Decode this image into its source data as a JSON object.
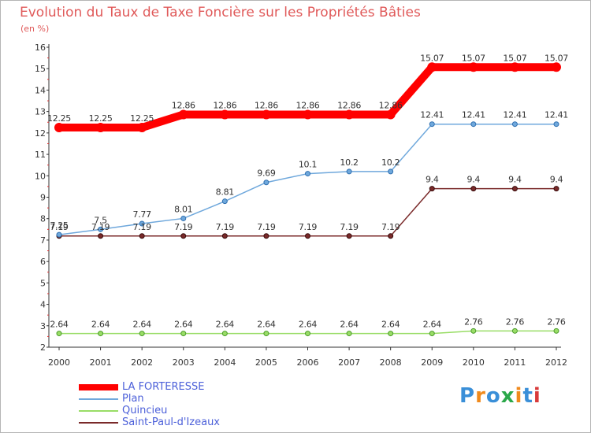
{
  "title": "Evolution du Taux de Taxe Foncière sur les Propriétés Bâties",
  "subtitle": "(en %)",
  "logo": {
    "text": "Proxiti",
    "colors": [
      "#3a8fd8",
      "#f08a1c",
      "#3a8fd8",
      "#2ba84a",
      "#f08a1c",
      "#3a8fd8",
      "#d83a3a"
    ]
  },
  "chart_data": {
    "type": "line",
    "title": "Evolution du Taux de Taxe Foncière sur les Propriétés Bâties",
    "ylabel": "(en %)",
    "xlabel": "",
    "ylim": [
      2,
      16
    ],
    "yticks": [
      "2",
      "3",
      "4",
      "5",
      "6",
      "7",
      "8",
      "9",
      "10",
      "11",
      "12",
      "13",
      "14",
      "15",
      "16"
    ],
    "categories": [
      "2000",
      "2001",
      "2002",
      "2003",
      "2004",
      "2005",
      "2006",
      "2007",
      "2008",
      "2009",
      "2010",
      "2011",
      "2012"
    ],
    "grid": false,
    "legend": "bottom-left",
    "series": [
      {
        "name": "LA FORTERESSE",
        "color": "#ff0000",
        "values": [
          12.25,
          12.25,
          12.25,
          12.86,
          12.86,
          12.86,
          12.86,
          12.86,
          12.86,
          15.07,
          15.07,
          15.07,
          15.07
        ],
        "labels": [
          "12.25",
          "12.25",
          "12.25",
          "12.86",
          "12.86",
          "12.86",
          "12.86",
          "12.86",
          "12.86",
          "15.07",
          "15.07",
          "15.07",
          "15.07"
        ]
      },
      {
        "name": "Plan",
        "color": "#6fa8dc",
        "values": [
          7.25,
          7.5,
          7.77,
          8.01,
          8.81,
          9.69,
          10.1,
          10.2,
          10.2,
          12.41,
          12.41,
          12.41,
          12.41
        ],
        "labels": [
          "7.25",
          "7.5",
          "7.77",
          "8.01",
          "8.81",
          "9.69",
          "10.1",
          "10.2",
          "10.2",
          "12.41",
          "12.41",
          "12.41",
          "12.41"
        ]
      },
      {
        "name": "Quincieu",
        "color": "#99dd66",
        "values": [
          2.64,
          2.64,
          2.64,
          2.64,
          2.64,
          2.64,
          2.64,
          2.64,
          2.64,
          2.64,
          2.76,
          2.76,
          2.76
        ],
        "labels": [
          "2.64",
          "2.64",
          "2.64",
          "2.64",
          "2.64",
          "2.64",
          "2.64",
          "2.64",
          "2.64",
          "2.64",
          "2.76",
          "2.76",
          "2.76"
        ]
      },
      {
        "name": "Saint-Paul-d'Izeaux",
        "color": "#7a2a2a",
        "values": [
          7.19,
          7.19,
          7.19,
          7.19,
          7.19,
          7.19,
          7.19,
          7.19,
          7.19,
          9.4,
          9.4,
          9.4,
          9.4
        ],
        "labels": [
          "7.19",
          "7.19",
          "7.19",
          "7.19",
          "7.19",
          "7.19",
          "7.19",
          "7.19",
          "7.19",
          "9.4",
          "9.4",
          "9.4",
          "9.4"
        ]
      }
    ]
  }
}
